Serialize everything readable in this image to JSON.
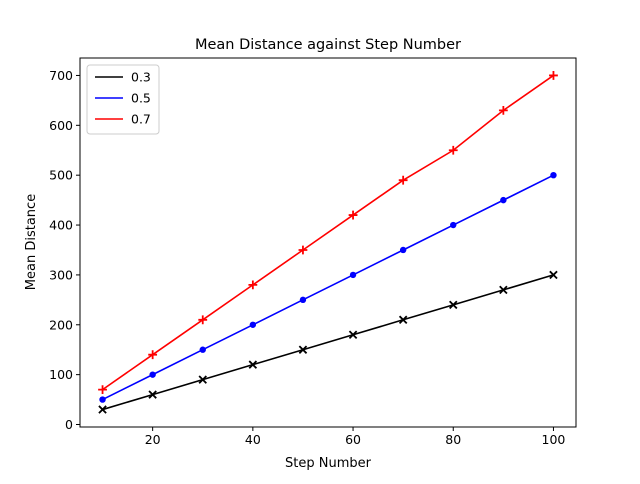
{
  "chart_data": {
    "type": "line",
    "title": "Mean Distance against Step Number",
    "xlabel": "Step Number",
    "ylabel": "Mean Distance",
    "x": [
      10,
      20,
      30,
      40,
      50,
      60,
      70,
      80,
      90,
      100
    ],
    "xlim": [
      5.5,
      104.5
    ],
    "ylim": [
      -5,
      735
    ],
    "xticks": [
      20,
      40,
      60,
      80,
      100
    ],
    "yticks": [
      0,
      100,
      200,
      300,
      400,
      500,
      600,
      700
    ],
    "grid": false,
    "legend_position": "top-left",
    "series": [
      {
        "name": "0.3",
        "color": "#000000",
        "marker": "x",
        "values": [
          30,
          60,
          90,
          120,
          150,
          180,
          210,
          240,
          270,
          300
        ]
      },
      {
        "name": "0.5",
        "color": "#0000ff",
        "marker": "o",
        "values": [
          50,
          100,
          150,
          200,
          250,
          300,
          350,
          400,
          450,
          500
        ]
      },
      {
        "name": "0.7",
        "color": "#ff0000",
        "marker": "+",
        "values": [
          70,
          140,
          210,
          280,
          350,
          420,
          490,
          550,
          630,
          700
        ]
      }
    ]
  }
}
